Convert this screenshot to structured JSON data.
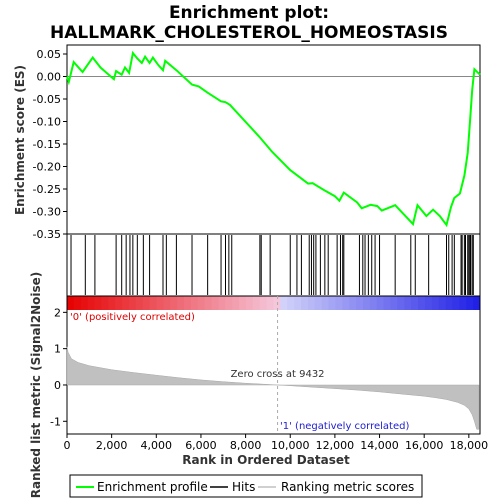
{
  "chart_data": {
    "type": "line",
    "title_line1": "Enrichment plot:",
    "title_line2": "HALLMARK_CHOLESTEROL_HOMEOSTASIS",
    "top_panel": {
      "ylabel": "Enrichment score (ES)",
      "ylim": [
        -0.35,
        0.07
      ],
      "yticks": [
        "0.05",
        "0.00",
        "-0.05",
        "-0.10",
        "-0.15",
        "-0.20",
        "-0.25",
        "-0.30",
        "-0.35"
      ],
      "ytick_values": [
        0.05,
        0.0,
        -0.05,
        -0.1,
        -0.15,
        -0.2,
        -0.25,
        -0.3,
        -0.35
      ],
      "series_name": "Enrichment profile",
      "color": "#00ff00",
      "es_profile": [
        [
          0,
          0.0
        ],
        [
          80,
          -0.012
        ],
        [
          300,
          0.032
        ],
        [
          700,
          0.01
        ],
        [
          1150,
          0.042
        ],
        [
          1500,
          0.02
        ],
        [
          2100,
          -0.006
        ],
        [
          2200,
          0.012
        ],
        [
          2450,
          0.004
        ],
        [
          2600,
          0.02
        ],
        [
          2780,
          0.008
        ],
        [
          2950,
          0.052
        ],
        [
          3150,
          0.04
        ],
        [
          3350,
          0.03
        ],
        [
          3500,
          0.044
        ],
        [
          3700,
          0.03
        ],
        [
          3850,
          0.042
        ],
        [
          4100,
          0.025
        ],
        [
          4300,
          0.014
        ],
        [
          4400,
          0.035
        ],
        [
          4900,
          0.014
        ],
        [
          5600,
          -0.018
        ],
        [
          5900,
          -0.022
        ],
        [
          6300,
          -0.036
        ],
        [
          6900,
          -0.055
        ],
        [
          7100,
          -0.057
        ],
        [
          7300,
          -0.063
        ],
        [
          8600,
          -0.133
        ],
        [
          9200,
          -0.168
        ],
        [
          10000,
          -0.208
        ],
        [
          10800,
          -0.238
        ],
        [
          11000,
          -0.237
        ],
        [
          11500,
          -0.252
        ],
        [
          12000,
          -0.266
        ],
        [
          12200,
          -0.276
        ],
        [
          12400,
          -0.258
        ],
        [
          13000,
          -0.28
        ],
        [
          13200,
          -0.293
        ],
        [
          13600,
          -0.285
        ],
        [
          13900,
          -0.288
        ],
        [
          14100,
          -0.298
        ],
        [
          14700,
          -0.286
        ],
        [
          15500,
          -0.328
        ],
        [
          15700,
          -0.286
        ],
        [
          16100,
          -0.31
        ],
        [
          16400,
          -0.296
        ],
        [
          16700,
          -0.31
        ],
        [
          17000,
          -0.33
        ],
        [
          17200,
          -0.29
        ],
        [
          17350,
          -0.27
        ],
        [
          17600,
          -0.26
        ],
        [
          17800,
          -0.22
        ],
        [
          17950,
          -0.17
        ],
        [
          18050,
          -0.1
        ],
        [
          18150,
          -0.03
        ],
        [
          18250,
          0.016
        ],
        [
          18500,
          0.004
        ]
      ]
    },
    "hits_panel": {
      "series_name": "Hits",
      "hit_ranks": [
        180,
        820,
        1250,
        2200,
        2450,
        2650,
        2820,
        2950,
        3150,
        3420,
        3700,
        4300,
        4450,
        4900,
        5600,
        6300,
        6900,
        7100,
        7250,
        7380,
        8640,
        8700,
        9100,
        10000,
        10300,
        10500,
        10850,
        10950,
        11050,
        11150,
        11350,
        11550,
        11700,
        12100,
        12250,
        12350,
        12400,
        13100,
        13250,
        13350,
        13500,
        13650,
        13800,
        14000,
        14700,
        15400,
        15600,
        16200,
        17000,
        17100,
        17250,
        17350,
        17650,
        17700,
        17800,
        17850,
        17950,
        18000,
        18050,
        18080,
        18150,
        18200
      ]
    },
    "bottom_panel": {
      "ylabel": "Ranked list metric (Signal2Noise)",
      "ylim": [
        -1.35,
        2.45
      ],
      "yticks": [
        "2",
        "1",
        "0",
        "-1"
      ],
      "ytick_values": [
        2,
        1,
        0,
        -1
      ],
      "series_name": "Ranking metric scores",
      "metric_curve": [
        [
          0,
          1.05
        ],
        [
          50,
          0.9
        ],
        [
          200,
          0.72
        ],
        [
          500,
          0.62
        ],
        [
          1000,
          0.53
        ],
        [
          2000,
          0.42
        ],
        [
          3000,
          0.34
        ],
        [
          4000,
          0.27
        ],
        [
          5000,
          0.2
        ],
        [
          6000,
          0.14
        ],
        [
          7000,
          0.09
        ],
        [
          8000,
          0.05
        ],
        [
          9000,
          0.015
        ],
        [
          9432,
          0.0
        ],
        [
          10000,
          -0.02
        ],
        [
          11000,
          -0.06
        ],
        [
          12000,
          -0.1
        ],
        [
          13000,
          -0.14
        ],
        [
          14000,
          -0.19
        ],
        [
          15000,
          -0.25
        ],
        [
          16000,
          -0.31
        ],
        [
          16500,
          -0.35
        ],
        [
          17000,
          -0.4
        ],
        [
          17500,
          -0.48
        ],
        [
          17800,
          -0.56
        ],
        [
          18000,
          -0.66
        ],
        [
          18150,
          -0.82
        ],
        [
          18250,
          -1.0
        ],
        [
          18350,
          -1.22
        ],
        [
          18450,
          -1.22
        ]
      ],
      "zero_cross_label": "Zero cross at 9432",
      "zero_cross": 9432,
      "pos_label": "'0' (positively correlated)",
      "neg_label": "'1' (negatively correlated)"
    },
    "xlabel": "Rank in Ordered Dataset",
    "xlim": [
      0,
      18500
    ],
    "xticks": [
      "0",
      "2,000",
      "4,000",
      "6,000",
      "8,000",
      "10,000",
      "12,000",
      "14,000",
      "16,000",
      "18,000"
    ],
    "xtick_values": [
      0,
      2000,
      4000,
      6000,
      8000,
      10000,
      12000,
      14000,
      16000,
      18000
    ],
    "legend": {
      "placement": "bottom",
      "items": [
        "Enrichment profile",
        "Hits",
        "Ranking metric scores"
      ]
    },
    "colors": {
      "profile": "#00ff00",
      "hits": "#000000",
      "metric": "#c0c0c0",
      "pos_text": "#e00000",
      "neg_text": "#2020d0"
    }
  }
}
